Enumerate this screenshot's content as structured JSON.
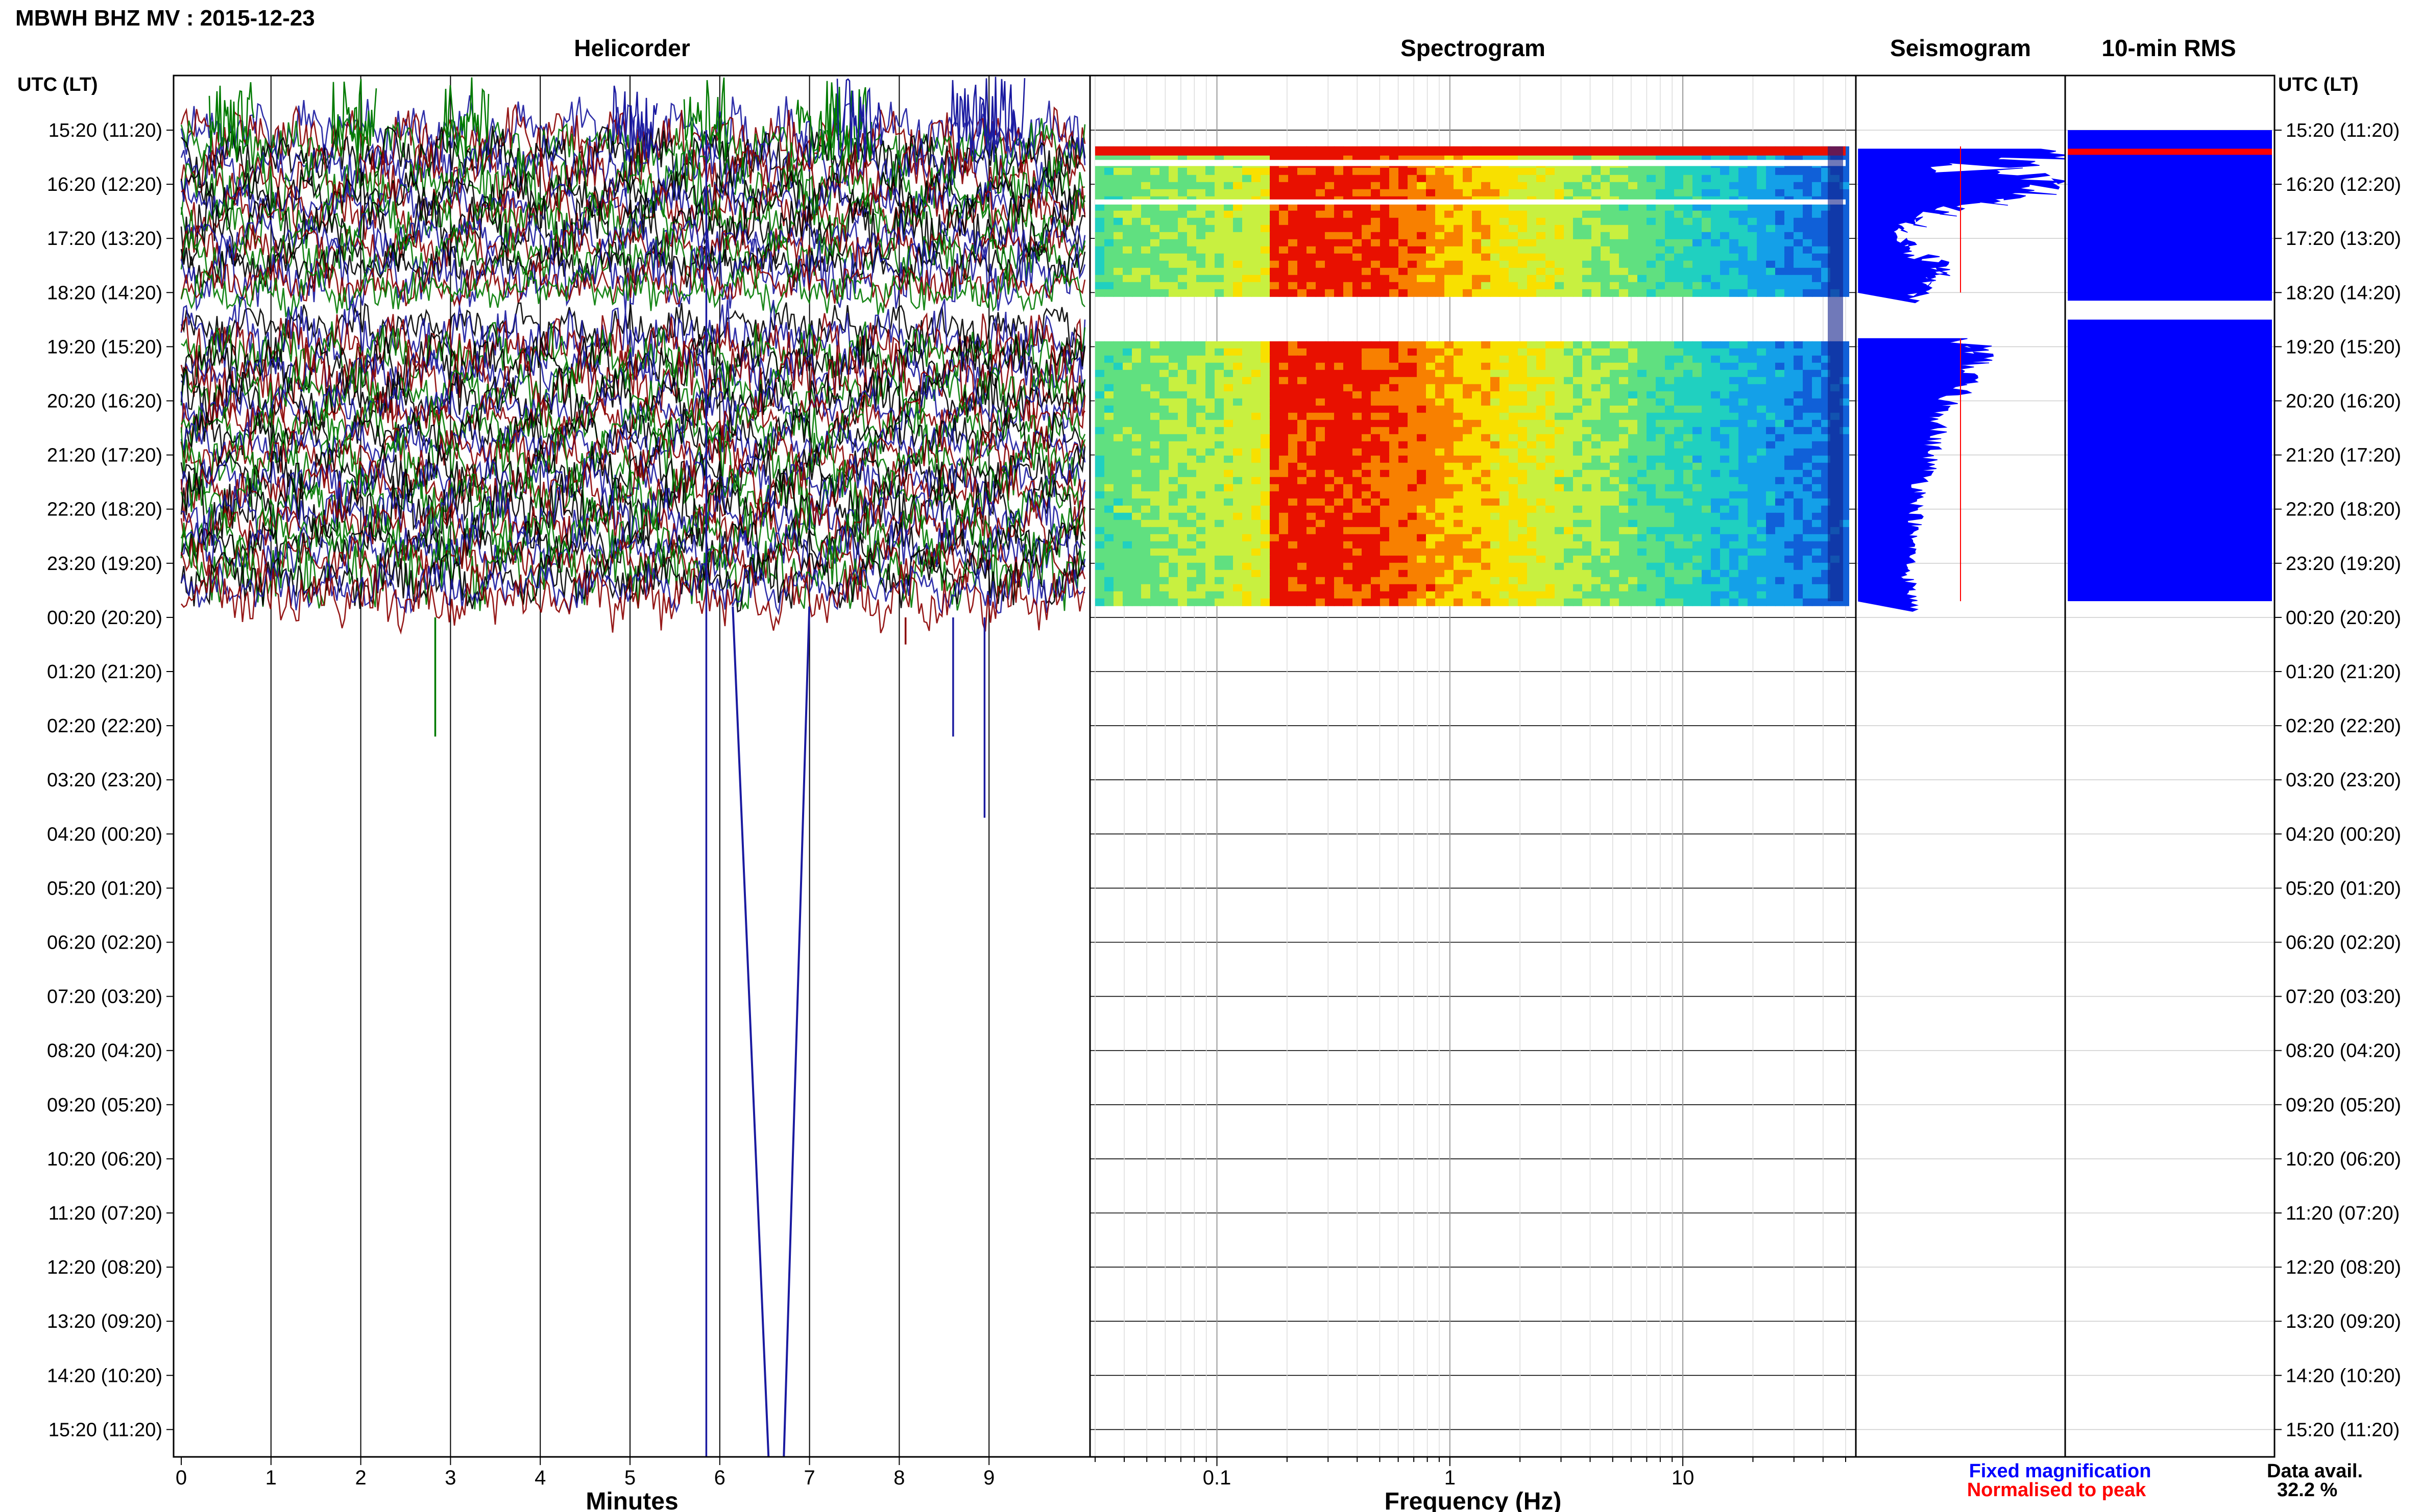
{
  "header": {
    "title": "MBWH BHZ MV : 2015-12-23"
  },
  "chart_data": [
    {
      "type": "line",
      "panel": "helicorder",
      "title": "Helicorder",
      "xlabel": "Minutes",
      "ylabel_left": "UTC (LT)",
      "ylabel_right": "UTC (LT)",
      "x_ticks": [
        "0",
        "1",
        "2",
        "3",
        "4",
        "5",
        "6",
        "7",
        "8",
        "9"
      ],
      "xlim": [
        0,
        10
      ],
      "rows": [
        "15:20 (11:20)",
        "16:20 (12:20)",
        "17:20 (13:20)",
        "18:20 (14:20)",
        "19:20 (15:20)",
        "20:20 (16:20)",
        "21:20 (17:20)",
        "22:20 (18:20)",
        "23:20 (19:20)",
        "00:20 (20:20)",
        "01:20 (21:20)",
        "02:20 (22:20)",
        "03:20 (23:20)",
        "04:20 (00:20)",
        "05:20 (01:20)",
        "06:20 (02:20)",
        "07:20 (03:20)",
        "08:20 (04:20)",
        "09:20 (05:20)",
        "10:20 (06:20)",
        "11:20 (07:20)",
        "12:20 (08:20)",
        "13:20 (09:20)",
        "14:20 (10:20)",
        "15:20 (11:20)"
      ],
      "trace_colors": [
        "#1a1aa0",
        "#8b0000",
        "#007a00",
        "#000000"
      ],
      "data_rows": {
        "first_gap_start": 3.0,
        "gap_end": 3.65,
        "last_row": 8.7
      },
      "events": [
        {
          "minute": 5.85,
          "from_row": 0.0,
          "to_row": 25.5,
          "color": "#1a1aa0",
          "kind": "spike"
        },
        {
          "minute": 6.6,
          "from_row": 8.8,
          "to_row": 25.5,
          "color": "#1a1aa0",
          "kind": "loop"
        },
        {
          "minute": 2.83,
          "from_row": 9.0,
          "to_row": 11.2,
          "color": "#007a00",
          "kind": "spike"
        },
        {
          "minute": 8.95,
          "from_row": 9.0,
          "to_row": 12.7,
          "color": "#1a1aa0",
          "kind": "spike"
        },
        {
          "minute": 8.6,
          "from_row": 9.0,
          "to_row": 11.2,
          "color": "#1a1aa0",
          "kind": "spike"
        },
        {
          "minute": 8.07,
          "from_row": 9.0,
          "to_row": 9.5,
          "color": "#8b0000",
          "kind": "spike"
        }
      ]
    },
    {
      "type": "heatmap",
      "panel": "spectrogram",
      "title": "Spectrogram",
      "xlabel": "Frequency (Hz)",
      "x_scale": "log",
      "xlim": [
        0.03,
        50
      ],
      "x_ticks": [
        0.1,
        1,
        10
      ],
      "x_tick_labels": [
        "0.1",
        "1",
        "10"
      ],
      "peak_frequency_hz": 0.2,
      "colorscale": [
        "#1060d8",
        "#14a0e8",
        "#20d0c0",
        "#60e080",
        "#c8f040",
        "#f8e000",
        "#f88000",
        "#e81000"
      ],
      "data_blocks": [
        {
          "from_row": 0.3,
          "to_row": 3.0
        },
        {
          "from_row": 3.9,
          "to_row": 8.7
        }
      ]
    },
    {
      "type": "area",
      "panel": "seismogram",
      "title": "Seismogram",
      "legend": [
        {
          "name": "Fixed magnification",
          "color": "#0000ff"
        },
        {
          "name": "Normalised to peak",
          "color": "#ff0000"
        }
      ],
      "legend_position": "bottom-right",
      "rows": [
        0.35,
        0.5,
        0.6,
        0.7,
        0.8,
        0.9,
        1.0,
        1.1,
        1.2,
        1.3,
        1.4,
        1.5,
        1.6,
        1.7,
        1.8,
        1.9,
        2.0,
        2.1,
        2.2,
        2.3,
        2.4,
        2.5,
        2.6,
        2.7,
        2.8,
        2.9,
        3.0,
        3.85,
        3.95,
        4.1,
        4.3,
        4.5,
        4.7,
        4.9,
        5.1,
        5.3,
        5.5,
        5.7,
        5.9,
        6.1,
        6.3,
        6.5,
        6.7,
        6.9,
        7.1,
        7.3,
        7.5,
        7.7,
        7.9,
        8.1,
        8.3,
        8.5,
        8.7
      ],
      "fixed_magnification": [
        0.98,
        0.8,
        0.4,
        0.72,
        0.88,
        0.9,
        0.85,
        0.8,
        0.7,
        0.55,
        0.42,
        0.3,
        0.3,
        0.22,
        0.18,
        0.2,
        0.26,
        0.22,
        0.24,
        0.35,
        0.4,
        0.42,
        0.38,
        0.34,
        0.32,
        0.3,
        0.26,
        0.5,
        0.58,
        0.62,
        0.56,
        0.52,
        0.48,
        0.44,
        0.42,
        0.4,
        0.38,
        0.36,
        0.35,
        0.34,
        0.33,
        0.3,
        0.3,
        0.28,
        0.28,
        0.26,
        0.26,
        0.26,
        0.25,
        0.24,
        0.25,
        0.26,
        0.28
      ],
      "normalised_peak_minute_fraction": 0.5
    },
    {
      "type": "bar",
      "panel": "rms",
      "title": "10-min RMS",
      "orientation": "horizontal",
      "bar_color": "#0000ff",
      "highlight_color": "#ff0000",
      "data_blocks": [
        {
          "from_row": 0.0,
          "to_row": 3.15
        },
        {
          "from_row": 3.5,
          "to_row": 8.7
        }
      ],
      "highlight_row": 0.4
    }
  ],
  "footer": {
    "legend_fixed": "Fixed magnification",
    "legend_norm": "Normalised to peak",
    "availability_label": "Data avail.",
    "availability_value": "32.2 %"
  }
}
